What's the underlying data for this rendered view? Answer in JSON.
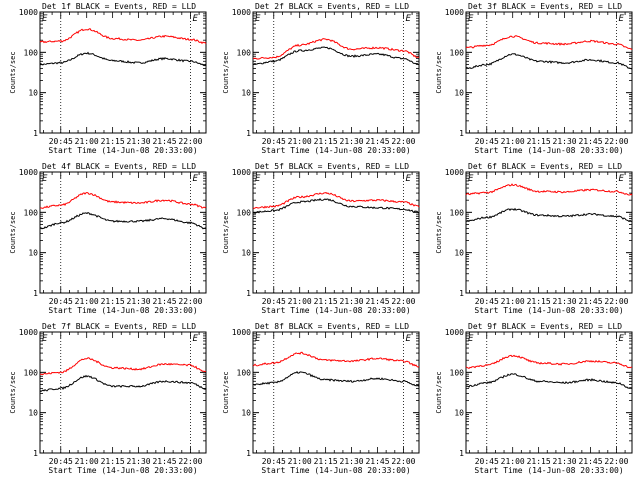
{
  "chart_data": [
    {
      "type": "line",
      "title": "Det 1f BLACK = Events, RED = LLD",
      "xlabel": "Start Time (14-Jun-08 20:33:00)",
      "ylabel": "Counts/sec",
      "xticks": [
        "20:45",
        "21:00",
        "21:15",
        "21:30",
        "21:45",
        "22:00"
      ],
      "yticks": [
        "1",
        "10",
        "100",
        "1000"
      ],
      "ylim": [
        1,
        1000
      ],
      "yscale": "log",
      "markers": [
        "20:45",
        "22:00"
      ],
      "marker_labels": [
        "E",
        "E"
      ],
      "series": [
        {
          "name": "Events",
          "color": "#000000",
          "x": [
            "20:33",
            "20:45",
            "21:00",
            "21:15",
            "21:30",
            "21:45",
            "22:00",
            "22:09"
          ],
          "values": [
            50,
            55,
            95,
            62,
            55,
            70,
            60,
            48
          ]
        },
        {
          "name": "LLD",
          "color": "#ff0000",
          "x": [
            "20:33",
            "20:45",
            "21:00",
            "21:15",
            "21:30",
            "21:45",
            "22:00",
            "22:09"
          ],
          "values": [
            180,
            190,
            380,
            220,
            200,
            250,
            210,
            170
          ]
        }
      ]
    },
    {
      "type": "line",
      "title": "Det 2f BLACK = Events, RED = LLD",
      "xlabel": "Start Time (14-Jun-08 20:33:00)",
      "ylabel": "Counts/sec",
      "xticks": [
        "20:45",
        "21:00",
        "21:15",
        "21:30",
        "21:45",
        "22:00"
      ],
      "yticks": [
        "1",
        "10",
        "100",
        "1000"
      ],
      "ylim": [
        1,
        1000
      ],
      "yscale": "log",
      "markers": [
        "20:45",
        "22:00"
      ],
      "marker_labels": [
        "E",
        "E"
      ],
      "series": [
        {
          "name": "Events",
          "color": "#000000",
          "x": [
            "20:33",
            "20:45",
            "21:00",
            "21:15",
            "21:30",
            "21:45",
            "22:00",
            "22:09"
          ],
          "values": [
            50,
            60,
            110,
            130,
            80,
            90,
            70,
            50
          ]
        },
        {
          "name": "LLD",
          "color": "#ff0000",
          "x": [
            "20:33",
            "20:45",
            "21:00",
            "21:15",
            "21:30",
            "21:45",
            "22:00",
            "22:09"
          ],
          "values": [
            70,
            75,
            150,
            210,
            120,
            130,
            110,
            75
          ]
        }
      ]
    },
    {
      "type": "line",
      "title": "Det 3f BLACK = Events, RED = LLD",
      "xlabel": "Start Time (14-Jun-08 20:33:00)",
      "ylabel": "Counts/sec",
      "xticks": [
        "20:45",
        "21:00",
        "21:15",
        "21:30",
        "21:45",
        "22:00"
      ],
      "yticks": [
        "1",
        "10",
        "100",
        "1000"
      ],
      "ylim": [
        1,
        1000
      ],
      "yscale": "log",
      "markers": [
        "20:45",
        "22:00"
      ],
      "marker_labels": [
        "E",
        "E"
      ],
      "series": [
        {
          "name": "Events",
          "color": "#000000",
          "x": [
            "20:33",
            "20:45",
            "21:00",
            "21:15",
            "21:30",
            "21:45",
            "22:00",
            "22:09"
          ],
          "values": [
            40,
            50,
            90,
            60,
            55,
            65,
            55,
            40
          ]
        },
        {
          "name": "LLD",
          "color": "#ff0000",
          "x": [
            "20:33",
            "20:45",
            "21:00",
            "21:15",
            "21:30",
            "21:45",
            "22:00",
            "22:09"
          ],
          "values": [
            130,
            150,
            250,
            170,
            160,
            190,
            160,
            120
          ]
        }
      ]
    },
    {
      "type": "line",
      "title": "Det 4f BLACK = Events, RED = LLD",
      "xlabel": "Start Time (14-Jun-08 20:33:00)",
      "ylabel": "Counts/sec",
      "xticks": [
        "20:45",
        "21:00",
        "21:15",
        "21:30",
        "21:45",
        "22:00"
      ],
      "yticks": [
        "1",
        "10",
        "100",
        "1000"
      ],
      "ylim": [
        1,
        1000
      ],
      "yscale": "log",
      "markers": [
        "20:45",
        "22:00"
      ],
      "marker_labels": [
        "E",
        "E"
      ],
      "series": [
        {
          "name": "Events",
          "color": "#000000",
          "x": [
            "20:33",
            "20:45",
            "21:00",
            "21:15",
            "21:30",
            "21:45",
            "22:00",
            "22:09"
          ],
          "values": [
            40,
            55,
            95,
            60,
            60,
            70,
            55,
            40
          ]
        },
        {
          "name": "LLD",
          "color": "#ff0000",
          "x": [
            "20:33",
            "20:45",
            "21:00",
            "21:15",
            "21:30",
            "21:45",
            "22:00",
            "22:09"
          ],
          "values": [
            130,
            150,
            300,
            180,
            170,
            200,
            160,
            130
          ]
        }
      ]
    },
    {
      "type": "line",
      "title": "Det 5f BLACK = Events, RED = LLD",
      "xlabel": "Start Time (14-Jun-08 20:33:00)",
      "ylabel": "Counts/sec",
      "xticks": [
        "20:45",
        "21:00",
        "21:15",
        "21:30",
        "21:45",
        "22:00"
      ],
      "yticks": [
        "1",
        "10",
        "100",
        "1000"
      ],
      "ylim": [
        1,
        1000
      ],
      "yscale": "log",
      "markers": [
        "20:45",
        "22:00"
      ],
      "marker_labels": [
        "E",
        "E"
      ],
      "series": [
        {
          "name": "Events",
          "color": "#000000",
          "x": [
            "20:33",
            "20:45",
            "21:00",
            "21:15",
            "21:30",
            "21:45",
            "22:00",
            "22:09"
          ],
          "values": [
            100,
            110,
            180,
            210,
            140,
            130,
            120,
            100
          ]
        },
        {
          "name": "LLD",
          "color": "#ff0000",
          "x": [
            "20:33",
            "20:45",
            "21:00",
            "21:15",
            "21:30",
            "21:45",
            "22:00",
            "22:09"
          ],
          "values": [
            130,
            140,
            240,
            300,
            190,
            200,
            180,
            140
          ]
        }
      ]
    },
    {
      "type": "line",
      "title": "Det 6f BLACK = Events, RED = LLD",
      "xlabel": "Start Time (14-Jun-08 20:33:00)",
      "ylabel": "Counts/sec",
      "xticks": [
        "20:45",
        "21:00",
        "21:15",
        "21:30",
        "21:45",
        "22:00"
      ],
      "yticks": [
        "1",
        "10",
        "100",
        "1000"
      ],
      "ylim": [
        1,
        1000
      ],
      "yscale": "log",
      "markers": [
        "20:45",
        "22:00"
      ],
      "marker_labels": [
        "E",
        "E"
      ],
      "series": [
        {
          "name": "Events",
          "color": "#000000",
          "x": [
            "20:33",
            "20:45",
            "21:00",
            "21:15",
            "21:30",
            "21:45",
            "22:00",
            "22:09"
          ],
          "values": [
            60,
            75,
            120,
            85,
            80,
            90,
            80,
            60
          ]
        },
        {
          "name": "LLD",
          "color": "#ff0000",
          "x": [
            "20:33",
            "20:45",
            "21:00",
            "21:15",
            "21:30",
            "21:45",
            "22:00",
            "22:09"
          ],
          "values": [
            280,
            310,
            480,
            330,
            320,
            360,
            330,
            270
          ]
        }
      ]
    },
    {
      "type": "line",
      "title": "Det 7f BLACK = Events, RED = LLD",
      "xlabel": "Start Time (14-Jun-08 20:33:00)",
      "ylabel": "Counts/sec",
      "xticks": [
        "20:45",
        "21:00",
        "21:15",
        "21:30",
        "21:45",
        "22:00"
      ],
      "yticks": [
        "1",
        "10",
        "100",
        "1000"
      ],
      "ylim": [
        1,
        1000
      ],
      "yscale": "log",
      "markers": [
        "20:45",
        "22:00"
      ],
      "marker_labels": [
        "E",
        "E"
      ],
      "series": [
        {
          "name": "Events",
          "color": "#000000",
          "x": [
            "20:33",
            "20:45",
            "21:00",
            "21:15",
            "21:30",
            "21:45",
            "22:00",
            "22:09"
          ],
          "values": [
            35,
            40,
            80,
            45,
            45,
            60,
            55,
            40
          ]
        },
        {
          "name": "LLD",
          "color": "#ff0000",
          "x": [
            "20:33",
            "20:45",
            "21:00",
            "21:15",
            "21:30",
            "21:45",
            "22:00",
            "22:09"
          ],
          "values": [
            90,
            100,
            220,
            130,
            120,
            160,
            150,
            100
          ]
        }
      ]
    },
    {
      "type": "line",
      "title": "Det 8f BLACK = Events, RED = LLD",
      "xlabel": "Start Time (14-Jun-08 20:33:00)",
      "ylabel": "Counts/sec",
      "xticks": [
        "20:45",
        "21:00",
        "21:15",
        "21:30",
        "21:45",
        "22:00"
      ],
      "yticks": [
        "1",
        "10",
        "100",
        "1000"
      ],
      "ylim": [
        1,
        1000
      ],
      "yscale": "log",
      "markers": [
        "20:45",
        "22:00"
      ],
      "marker_labels": [
        "E",
        "E"
      ],
      "series": [
        {
          "name": "Events",
          "color": "#000000",
          "x": [
            "20:33",
            "20:45",
            "21:00",
            "21:15",
            "21:30",
            "21:45",
            "22:00",
            "22:09"
          ],
          "values": [
            50,
            55,
            100,
            65,
            60,
            70,
            60,
            45
          ]
        },
        {
          "name": "LLD",
          "color": "#ff0000",
          "x": [
            "20:33",
            "20:45",
            "21:00",
            "21:15",
            "21:30",
            "21:45",
            "22:00",
            "22:09"
          ],
          "values": [
            150,
            170,
            300,
            200,
            190,
            220,
            190,
            140
          ]
        }
      ]
    },
    {
      "type": "line",
      "title": "Det 9f BLACK = Events, RED = LLD",
      "xlabel": "Start Time (14-Jun-08 20:33:00)",
      "ylabel": "Counts/sec",
      "xticks": [
        "20:45",
        "21:00",
        "21:15",
        "21:30",
        "21:45",
        "22:00"
      ],
      "yticks": [
        "1",
        "10",
        "100",
        "1000"
      ],
      "ylim": [
        1,
        1000
      ],
      "yscale": "log",
      "markers": [
        "20:45",
        "22:00"
      ],
      "marker_labels": [
        "E",
        "E"
      ],
      "series": [
        {
          "name": "Events",
          "color": "#000000",
          "x": [
            "20:33",
            "20:45",
            "21:00",
            "21:15",
            "21:30",
            "21:45",
            "22:00",
            "22:09"
          ],
          "values": [
            45,
            55,
            90,
            60,
            55,
            65,
            55,
            40
          ]
        },
        {
          "name": "LLD",
          "color": "#ff0000",
          "x": [
            "20:33",
            "20:45",
            "21:00",
            "21:15",
            "21:30",
            "21:45",
            "22:00",
            "22:09"
          ],
          "values": [
            130,
            150,
            260,
            170,
            160,
            190,
            170,
            130
          ]
        }
      ]
    }
  ]
}
